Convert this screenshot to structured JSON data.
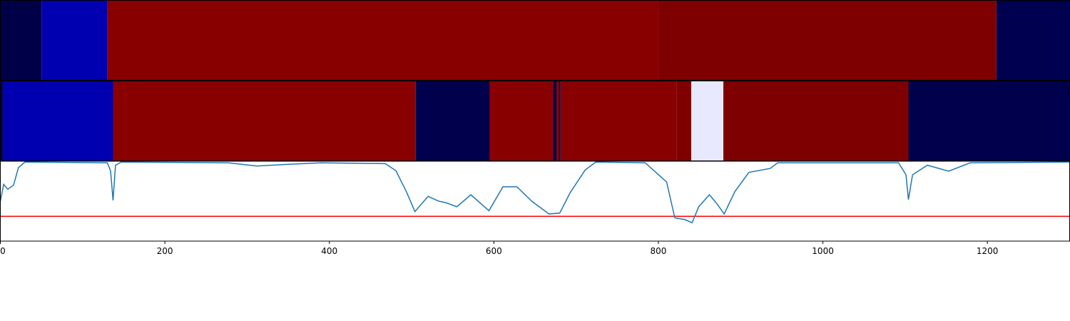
{
  "chart_data": [
    {
      "type": "heatmap",
      "xlim": [
        0,
        1300
      ],
      "segments": [
        {
          "start": 0,
          "end": 50,
          "color": "#000048"
        },
        {
          "start": 50,
          "end": 130,
          "color": "#0000b0"
        },
        {
          "start": 130,
          "end": 800,
          "color": "#880000"
        },
        {
          "start": 800,
          "end": 1211,
          "color": "#7f0000"
        },
        {
          "start": 1211,
          "end": 1300,
          "color": "#000050"
        }
      ]
    },
    {
      "type": "heatmap",
      "xlim": [
        0,
        1300
      ],
      "segments": [
        {
          "start": 0,
          "end": 3,
          "color": "#000050"
        },
        {
          "start": 3,
          "end": 137,
          "color": "#0000b0"
        },
        {
          "start": 137,
          "end": 505,
          "color": "#880000"
        },
        {
          "start": 505,
          "end": 595,
          "color": "#00004c"
        },
        {
          "start": 595,
          "end": 672,
          "color": "#880000"
        },
        {
          "start": 672,
          "end": 676,
          "color": "#00004c"
        },
        {
          "start": 676,
          "end": 679,
          "color": "#880000"
        },
        {
          "start": 679,
          "end": 681,
          "color": "#00004c"
        },
        {
          "start": 681,
          "end": 822,
          "color": "#880000"
        },
        {
          "start": 822,
          "end": 840,
          "color": "#800000"
        },
        {
          "start": 840,
          "end": 879,
          "color": "#e8e8ff"
        },
        {
          "start": 879,
          "end": 1104,
          "color": "#7f0000"
        },
        {
          "start": 1104,
          "end": 1300,
          "color": "#00004c"
        }
      ]
    },
    {
      "type": "line",
      "xlim": [
        0,
        1300
      ],
      "ylim": [
        0,
        1
      ],
      "xticks": [
        0,
        200,
        400,
        600,
        800,
        1000,
        1200
      ],
      "threshold": 0.31,
      "threshold_color": "#ff0000",
      "series": [
        {
          "color": "#1f77b4",
          "x": [
            0,
            4,
            9,
            16,
            22,
            30,
            130,
            134,
            137,
            140,
            147,
            277,
            312,
            347,
            390,
            468,
            481,
            494,
            504,
            520,
            533,
            542,
            555,
            572,
            594,
            611,
            628,
            646,
            667,
            680,
            693,
            711,
            724,
            784,
            810,
            820,
            832,
            841,
            849,
            862,
            871,
            880,
            893,
            910,
            936,
            945,
            1092,
            1101,
            1104,
            1109,
            1127,
            1153,
            1179,
            1300
          ],
          "values": [
            0.5,
            0.71,
            0.65,
            0.7,
            0.92,
            0.99,
            0.98,
            0.88,
            0.51,
            0.95,
            0.99,
            0.98,
            0.94,
            0.96,
            0.98,
            0.97,
            0.88,
            0.61,
            0.37,
            0.56,
            0.5,
            0.48,
            0.43,
            0.58,
            0.38,
            0.68,
            0.68,
            0.5,
            0.34,
            0.35,
            0.61,
            0.89,
            0.99,
            0.98,
            0.74,
            0.29,
            0.27,
            0.23,
            0.43,
            0.58,
            0.47,
            0.34,
            0.62,
            0.86,
            0.91,
            0.98,
            0.98,
            0.83,
            0.52,
            0.83,
            0.95,
            0.875,
            0.98,
            0.99
          ]
        }
      ]
    }
  ]
}
